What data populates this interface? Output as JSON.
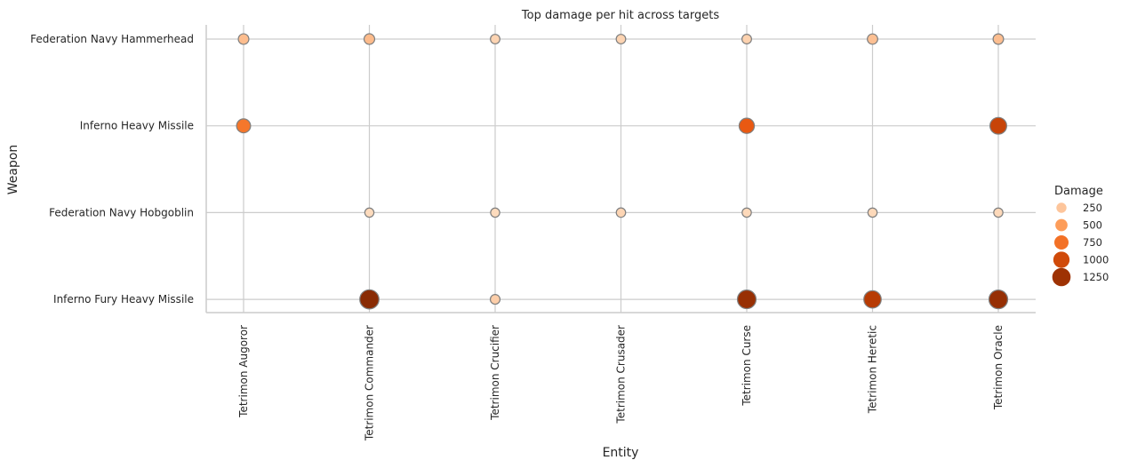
{
  "chart_data": {
    "type": "scatter",
    "title": "Top damage per hit across targets",
    "xlabel": "Entity",
    "ylabel": "Weapon",
    "x_categories": [
      "Tetrimon Augoror",
      "Tetrimon Commander",
      "Tetrimon Crucifier",
      "Tetrimon Crusader",
      "Tetrimon Curse",
      "Tetrimon Heretic",
      "Tetrimon Oracle"
    ],
    "y_categories": [
      "Federation Navy Hammerhead",
      "Inferno Heavy Missile",
      "Federation Navy Hobgoblin",
      "Inferno Fury Heavy Missile"
    ],
    "grid": true,
    "legend": {
      "title": "Damage",
      "placement": "right",
      "entries": [
        {
          "label": "250",
          "value": 250
        },
        {
          "label": "500",
          "value": 500
        },
        {
          "label": "750",
          "value": 750
        },
        {
          "label": "1000",
          "value": 1000
        },
        {
          "label": "1250",
          "value": 1250
        }
      ]
    },
    "points": [
      {
        "entity": "Tetrimon Augoror",
        "weapon": "Federation Navy Hammerhead",
        "damage": 300
      },
      {
        "entity": "Tetrimon Commander",
        "weapon": "Federation Navy Hammerhead",
        "damage": 310
      },
      {
        "entity": "Tetrimon Crucifier",
        "weapon": "Federation Navy Hammerhead",
        "damage": 170
      },
      {
        "entity": "Tetrimon Crusader",
        "weapon": "Federation Navy Hammerhead",
        "damage": 170
      },
      {
        "entity": "Tetrimon Curse",
        "weapon": "Federation Navy Hammerhead",
        "damage": 180
      },
      {
        "entity": "Tetrimon Heretic",
        "weapon": "Federation Navy Hammerhead",
        "damage": 280
      },
      {
        "entity": "Tetrimon Oracle",
        "weapon": "Federation Navy Hammerhead",
        "damage": 290
      },
      {
        "entity": "Tetrimon Augoror",
        "weapon": "Inferno Heavy Missile",
        "damage": 720
      },
      {
        "entity": "Tetrimon Curse",
        "weapon": "Inferno Heavy Missile",
        "damage": 870
      },
      {
        "entity": "Tetrimon Oracle",
        "weapon": "Inferno Heavy Missile",
        "damage": 1050
      },
      {
        "entity": "Tetrimon Commander",
        "weapon": "Federation Navy Hobgoblin",
        "damage": 130
      },
      {
        "entity": "Tetrimon Crucifier",
        "weapon": "Federation Navy Hobgoblin",
        "damage": 130
      },
      {
        "entity": "Tetrimon Crusader",
        "weapon": "Federation Navy Hobgoblin",
        "damage": 160
      },
      {
        "entity": "Tetrimon Curse",
        "weapon": "Federation Navy Hobgoblin",
        "damage": 140
      },
      {
        "entity": "Tetrimon Heretic",
        "weapon": "Federation Navy Hobgoblin",
        "damage": 140
      },
      {
        "entity": "Tetrimon Oracle",
        "weapon": "Federation Navy Hobgoblin",
        "damage": 140
      },
      {
        "entity": "Tetrimon Commander",
        "weapon": "Inferno Fury Heavy Missile",
        "damage": 1350
      },
      {
        "entity": "Tetrimon Crucifier",
        "weapon": "Inferno Fury Heavy Missile",
        "damage": 200
      },
      {
        "entity": "Tetrimon Curse",
        "weapon": "Inferno Fury Heavy Missile",
        "damage": 1280
      },
      {
        "entity": "Tetrimon Heretic",
        "weapon": "Inferno Fury Heavy Missile",
        "damage": 1130
      },
      {
        "entity": "Tetrimon Oracle",
        "weapon": "Inferno Fury Heavy Missile",
        "damage": 1290
      }
    ],
    "colors": {
      "ramp": [
        "#fde0c5",
        "#fdb27d",
        "#fd8b3c",
        "#e85710",
        "#b53a04",
        "#7f2704"
      ],
      "marker_edge": "#7f7f7f",
      "grid": "#cccccc",
      "axis": "#cccccc"
    }
  }
}
